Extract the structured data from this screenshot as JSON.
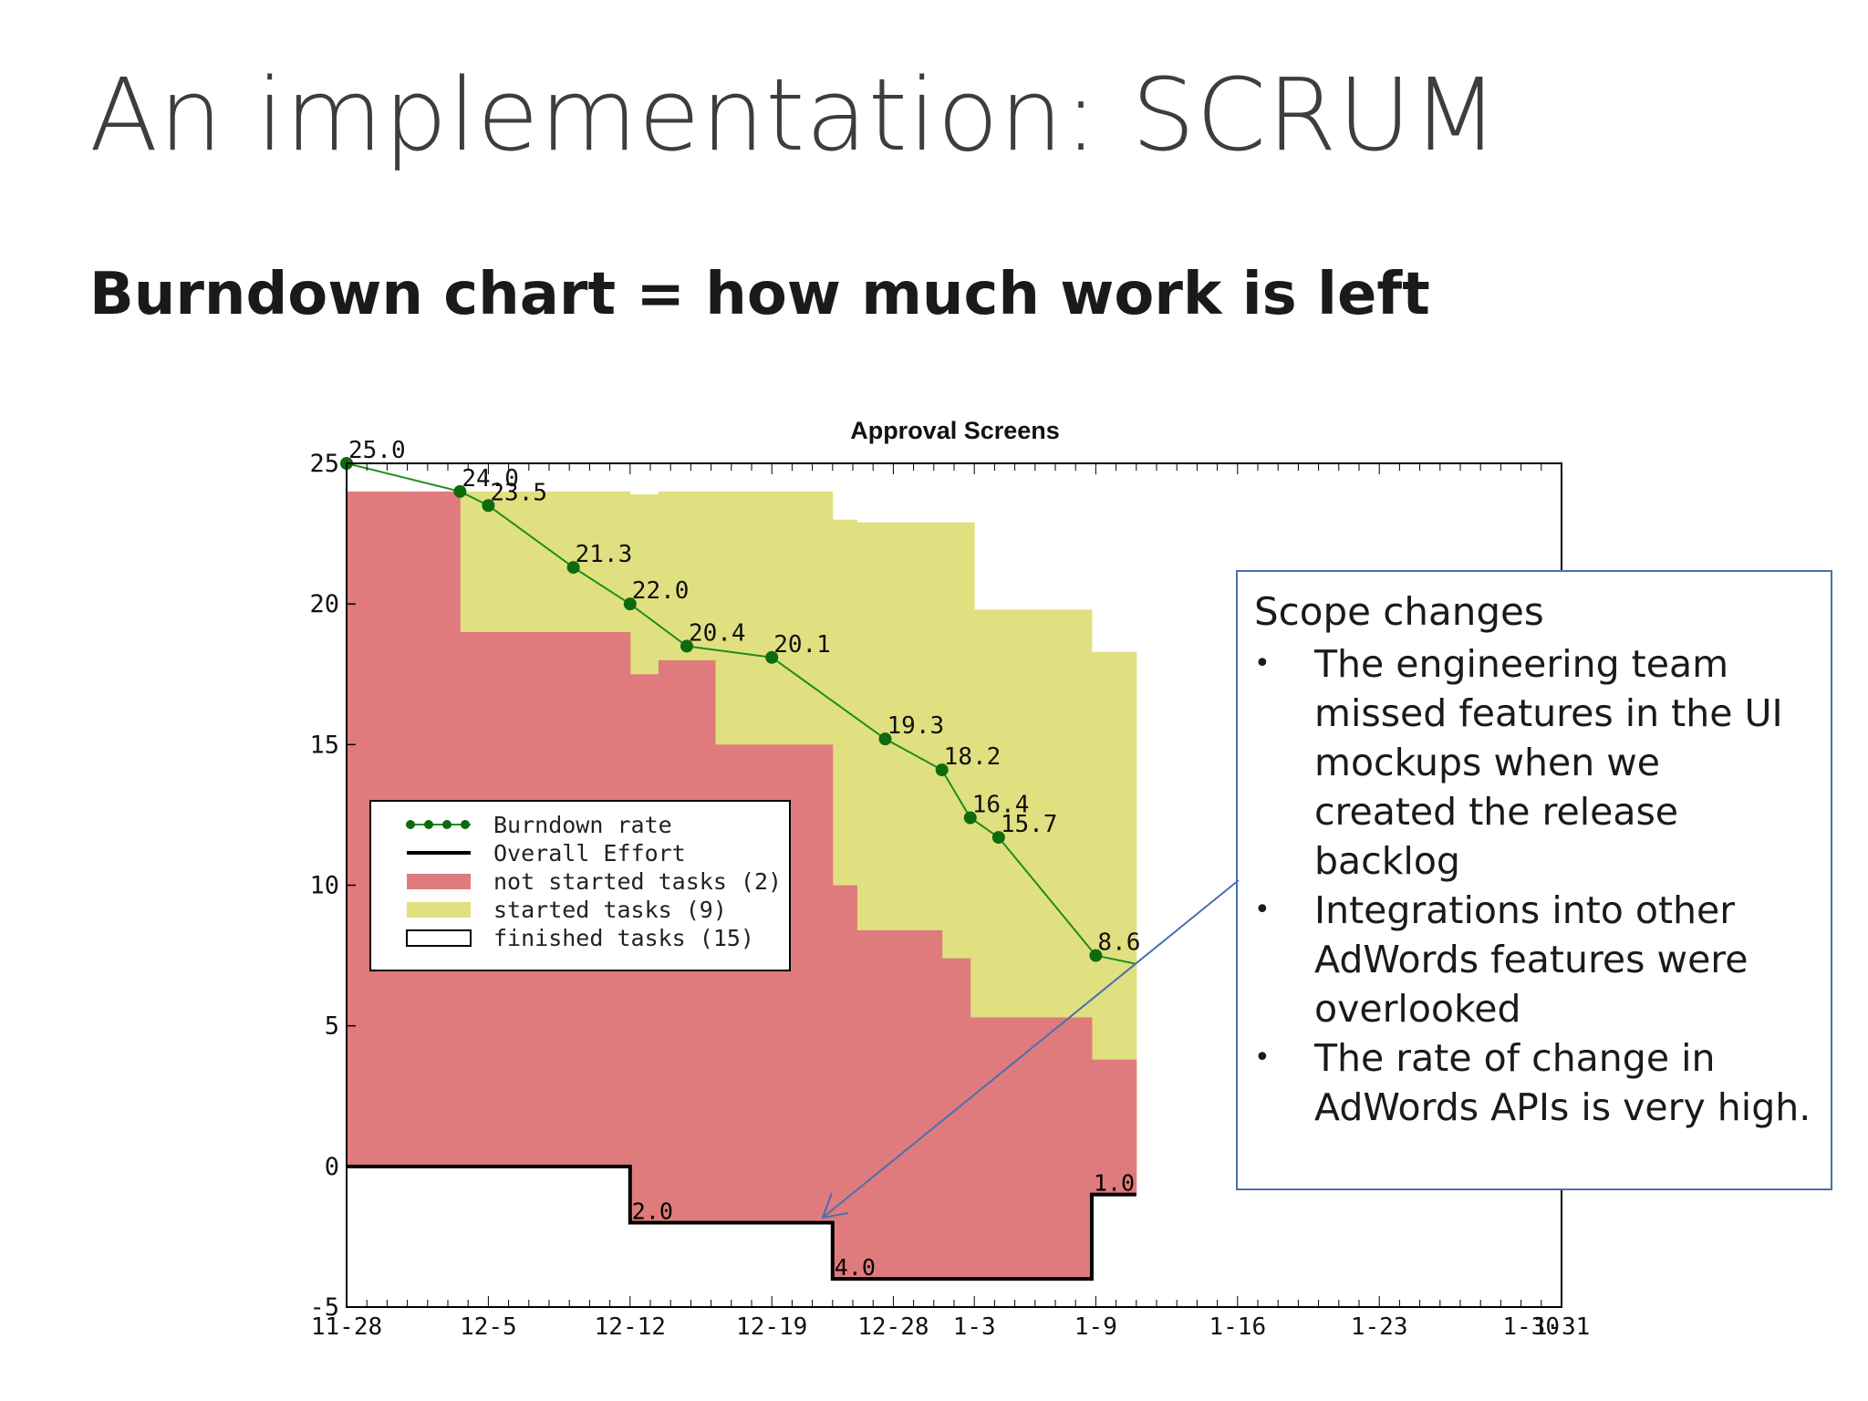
{
  "slide": {
    "title": "An implementation: SCRUM",
    "subtitle": "Burndown chart = how much work is left"
  },
  "callout": {
    "title": "Scope changes",
    "bullet_glyph": "•",
    "items": [
      "The engineering team missed features in the UI mockups when we created the release backlog",
      "Integrations into other AdWords features were overlooked",
      "The rate of change in AdWords APIs is very high."
    ],
    "border_color": "#4a6fb0"
  },
  "chart_data": {
    "type": "area",
    "title": "Approval Screens",
    "xlabel": "",
    "ylabel": "",
    "ylim": [
      -5,
      25
    ],
    "yticks": [
      -5,
      0,
      5,
      10,
      15,
      20,
      25
    ],
    "xticks": [
      {
        "label": "11-28",
        "day": 0
      },
      {
        "label": "12-5",
        "day": 7
      },
      {
        "label": "12-12",
        "day": 14
      },
      {
        "label": "12-19",
        "day": 21
      },
      {
        "label": "12-28",
        "day": 27
      },
      {
        "label": "1-3",
        "day": 31
      },
      {
        "label": "1-9",
        "day": 37
      },
      {
        "label": "1-16",
        "day": 44
      },
      {
        "label": "1-23",
        "day": 51
      },
      {
        "label": "1-30",
        "day": 58.5
      },
      {
        "label": "1-31",
        "day": 60
      }
    ],
    "xlim": [
      0,
      60
    ],
    "grid": false,
    "legend_position": "center-left",
    "colors": {
      "burndown": "#1e8c1e",
      "burndown_marker": "#0d6b0d",
      "overall_effort": "#000000",
      "not_started": "#e07b7d",
      "started": "#e0e080",
      "finished": "#ffffff"
    },
    "legend": [
      {
        "label": "Burndown rate",
        "kind": "burndown"
      },
      {
        "label": "Overall Effort",
        "kind": "overall_effort"
      },
      {
        "label": "not started tasks (2)",
        "kind": "not_started"
      },
      {
        "label": "started tasks (9)",
        "kind": "started"
      },
      {
        "label": "finished tasks (15)",
        "kind": "finished"
      }
    ],
    "series": [
      {
        "name": "Burndown rate",
        "points": [
          {
            "day": 0,
            "value": 25.0,
            "label": "25.0"
          },
          {
            "day": 5.6,
            "value": 24.0,
            "label": "24.0"
          },
          {
            "day": 7,
            "value": 23.5,
            "label": "23.5"
          },
          {
            "day": 11.2,
            "value": 21.3,
            "label": "21.3"
          },
          {
            "day": 14,
            "value": 20.0,
            "label": "22.0"
          },
          {
            "day": 16.8,
            "value": 18.5,
            "label": "20.4"
          },
          {
            "day": 21,
            "value": 18.1,
            "label": "20.1"
          },
          {
            "day": 26.6,
            "value": 15.2,
            "label": "19.3"
          },
          {
            "day": 29.4,
            "value": 14.1,
            "label": "18.2"
          },
          {
            "day": 30.8,
            "value": 12.4,
            "label": "16.4"
          },
          {
            "day": 32.2,
            "value": 11.7,
            "label": "15.7"
          },
          {
            "day": 37,
            "value": 7.5,
            "label": "8.6"
          },
          {
            "day": 39,
            "value": 7.2,
            "label": ""
          }
        ]
      },
      {
        "name": "Overall Effort",
        "steps": [
          {
            "day": 0,
            "value": 0
          },
          {
            "day": 14,
            "value": 0
          },
          {
            "day": 14,
            "value": -2.0,
            "label": "2.0"
          },
          {
            "day": 24,
            "value": -2.0
          },
          {
            "day": 24,
            "value": -4.0,
            "label": "4.0"
          },
          {
            "day": 36.8,
            "value": -4.0
          },
          {
            "day": 36.8,
            "value": -1.0,
            "label": "1.0"
          },
          {
            "day": 39,
            "value": -1.0
          }
        ]
      },
      {
        "name": "not started tasks (2)",
        "steps": [
          {
            "from": 0,
            "to": 5.6,
            "value": 24.0
          },
          {
            "from": 5.6,
            "to": 14,
            "value": 19.0
          },
          {
            "from": 14,
            "to": 15.4,
            "value": 17.5
          },
          {
            "from": 15.4,
            "to": 18.2,
            "value": 18.0
          },
          {
            "from": 18.2,
            "to": 24,
            "value": 15.0
          },
          {
            "from": 24,
            "to": 25.2,
            "value": 10.0
          },
          {
            "from": 25.2,
            "to": 29.4,
            "value": 8.4
          },
          {
            "from": 29.4,
            "to": 30.8,
            "value": 7.4
          },
          {
            "from": 30.8,
            "to": 36.8,
            "value": 5.3
          },
          {
            "from": 36.8,
            "to": 39,
            "value": 3.8
          }
        ]
      },
      {
        "name": "started tasks (9)",
        "steps": [
          {
            "from": 0,
            "to": 5.6,
            "value": 24.0
          },
          {
            "from": 5.6,
            "to": 14,
            "value": 24.0
          },
          {
            "from": 14,
            "to": 15.4,
            "value": 23.9
          },
          {
            "from": 15.4,
            "to": 24,
            "value": 24.0
          },
          {
            "from": 24,
            "to": 25.2,
            "value": 23.0
          },
          {
            "from": 25.2,
            "to": 31,
            "value": 22.9
          },
          {
            "from": 31,
            "to": 36.8,
            "value": 19.8
          },
          {
            "from": 36.8,
            "to": 39,
            "value": 18.3
          }
        ]
      }
    ]
  }
}
